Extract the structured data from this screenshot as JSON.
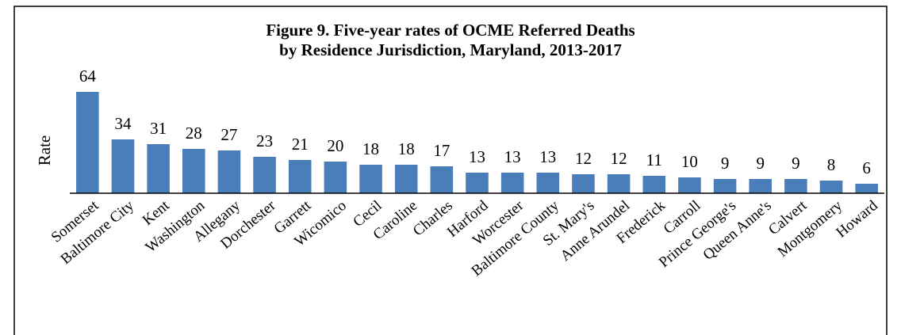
{
  "chart_data": {
    "type": "bar",
    "title": [
      "Figure 9. Five-year rates of OCME Referred Deaths",
      "by Residence Jurisdiction, Maryland, 2013-2017"
    ],
    "y_label": "Rate",
    "categories": [
      "Somerset",
      "Baltimore City",
      "Kent",
      "Washington",
      "Allegany",
      "Dorchester",
      "Garrett",
      "Wicomico",
      "Cecil",
      "Caroline",
      "Charles",
      "Harford",
      "Worcester",
      "Baltimore County",
      "St. Mary's",
      "Anne Arundel",
      "Frederick",
      "Carroll",
      "Prince George's",
      "Queen Anne's",
      "Calvert",
      "Montgomery",
      "Howard"
    ],
    "values": [
      64,
      34,
      31,
      28,
      27,
      23,
      21,
      20,
      18,
      18,
      17,
      13,
      13,
      13,
      12,
      12,
      11,
      10,
      9,
      9,
      9,
      8,
      6
    ],
    "color": "#4a7ebb",
    "ylim": [
      0,
      70
    ]
  }
}
